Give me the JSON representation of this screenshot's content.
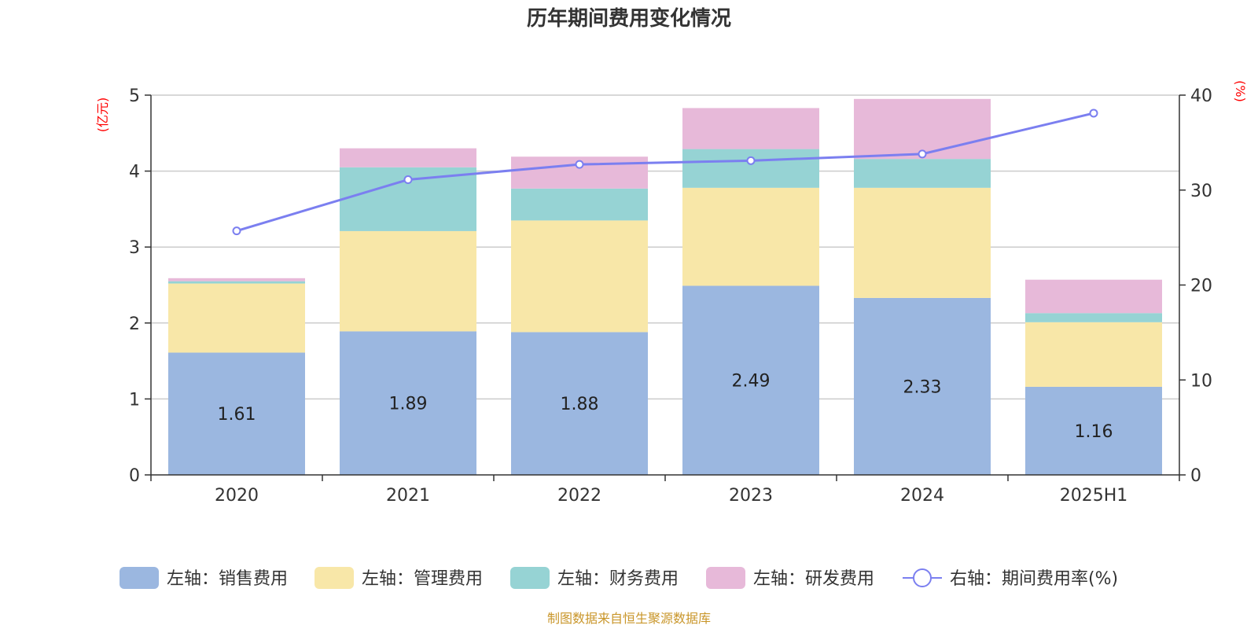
{
  "chart_data": {
    "type": "bar",
    "stacked": true,
    "title": "历年期间费用变化情况",
    "categories": [
      "2020",
      "2021",
      "2022",
      "2023",
      "2024",
      "2025H1"
    ],
    "left_axis": {
      "unit": "(亿元)",
      "ylim": [
        0,
        5
      ],
      "ticks": [
        0,
        1,
        2,
        3,
        4,
        5
      ]
    },
    "right_axis": {
      "unit": "(%)",
      "ylim": [
        0,
        40
      ],
      "ticks": [
        0,
        10,
        20,
        30,
        40
      ]
    },
    "series": [
      {
        "name": "左轴：销售费用",
        "axis": "left",
        "type": "bar",
        "color": "#9bb7e0",
        "values": [
          1.61,
          1.89,
          1.88,
          2.49,
          2.33,
          1.16
        ],
        "show_labels": true
      },
      {
        "name": "左轴：管理费用",
        "axis": "left",
        "type": "bar",
        "color": "#f8e7a8",
        "values": [
          0.91,
          1.32,
          1.47,
          1.29,
          1.45,
          0.85
        ],
        "show_labels": false
      },
      {
        "name": "左轴：财务费用",
        "axis": "left",
        "type": "bar",
        "color": "#96d3d4",
        "values": [
          0.03,
          0.84,
          0.42,
          0.51,
          0.38,
          0.12
        ],
        "show_labels": false
      },
      {
        "name": "左轴：研发费用",
        "axis": "left",
        "type": "bar",
        "color": "#e7b9d9",
        "values": [
          0.04,
          0.25,
          0.42,
          0.54,
          0.79,
          0.44
        ],
        "show_labels": false
      },
      {
        "name": "右轴：期间费用率(%)",
        "axis": "right",
        "type": "line",
        "color": "#7b7ff0",
        "values": [
          25.7,
          31.1,
          32.7,
          33.1,
          33.8,
          38.1
        ]
      }
    ],
    "grid": true,
    "legend_position": "bottom"
  },
  "source": "制图数据来自恒生聚源数据库"
}
